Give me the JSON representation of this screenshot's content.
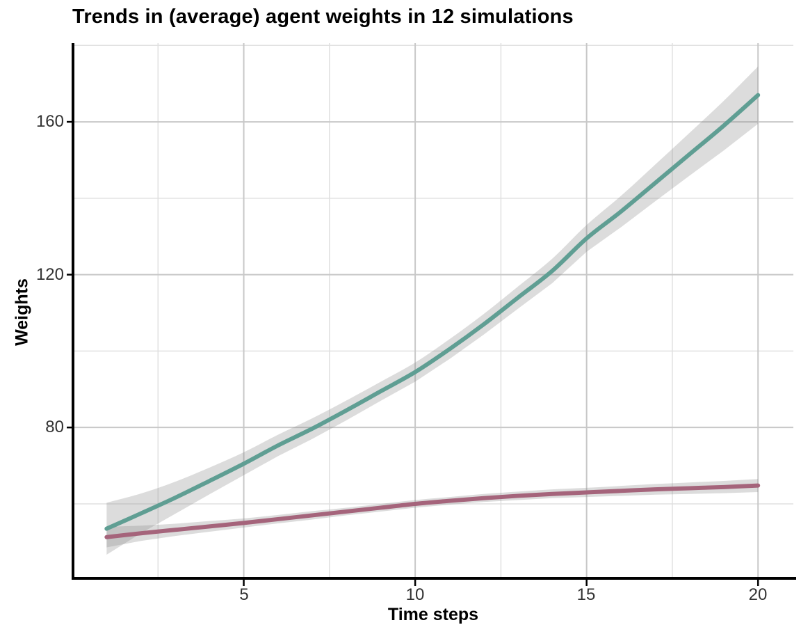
{
  "background": "#ffffff",
  "chart_data": {
    "type": "line",
    "title": "Trends in (average) agent weights in 12 simulations",
    "xlabel": "Time steps",
    "ylabel": "Weights",
    "legend": "none",
    "grid": "major+minor",
    "xlim": [
      0.02,
      21.03
    ],
    "ylim": [
      40.5,
      180.6
    ],
    "x_ticks": [
      5,
      10,
      15,
      20
    ],
    "x_minor": [
      2.5,
      7.5,
      12.5,
      17.5
    ],
    "y_ticks": [
      80,
      120,
      160
    ],
    "y_minor": [
      60,
      100,
      140,
      180
    ],
    "x": [
      1,
      2,
      3,
      4,
      5,
      6,
      7,
      8,
      9,
      10,
      11,
      12,
      13,
      14,
      15,
      16,
      17,
      18,
      19,
      20
    ],
    "series": [
      {
        "name": "teal",
        "color": "#5f9e93",
        "values": [
          53.5,
          57.5,
          61.6,
          66.0,
          70.5,
          75.3,
          79.7,
          84.5,
          89.5,
          94.5,
          100.5,
          107.0,
          114.0,
          121.0,
          129.5,
          136.5,
          144.0,
          151.5,
          159.0,
          167.0
        ],
        "ci_lower": [
          46.7,
          52.3,
          57.4,
          62.5,
          67.5,
          72.5,
          77.0,
          81.9,
          87.0,
          92.0,
          97.9,
          104.3,
          111.1,
          117.8,
          126.0,
          132.4,
          139.2,
          145.9,
          152.5,
          159.5
        ],
        "ci_upper": [
          60.3,
          62.7,
          65.8,
          69.5,
          73.5,
          78.1,
          82.4,
          87.1,
          92.0,
          97.0,
          103.1,
          109.7,
          116.9,
          124.2,
          133.0,
          140.6,
          148.8,
          157.1,
          165.5,
          174.5
        ]
      },
      {
        "name": "mauve",
        "color": "#a5647b",
        "values": [
          51.3,
          52.3,
          53.2,
          54.1,
          55.0,
          56.0,
          57.0,
          58.0,
          59.0,
          60.0,
          60.8,
          61.5,
          62.1,
          62.6,
          63.0,
          63.4,
          63.8,
          64.1,
          64.4,
          64.8
        ],
        "ci_lower": [
          48.6,
          50.3,
          51.6,
          52.7,
          53.8,
          54.9,
          55.9,
          57.0,
          58.0,
          59.0,
          59.8,
          60.5,
          61.0,
          61.5,
          61.8,
          62.1,
          62.4,
          62.6,
          62.8,
          63.1
        ],
        "ci_upper": [
          54.0,
          54.3,
          54.8,
          55.5,
          56.2,
          57.1,
          58.1,
          59.0,
          60.0,
          61.0,
          61.8,
          62.6,
          63.2,
          63.8,
          64.2,
          64.7,
          65.2,
          65.6,
          66.0,
          66.5
        ]
      }
    ],
    "band_color": "#8c8c8c",
    "band_opacity": 0.3,
    "grid_major_color": "#c8c8c8",
    "grid_minor_color": "#e0e0e0",
    "axis_color": "#000000"
  }
}
